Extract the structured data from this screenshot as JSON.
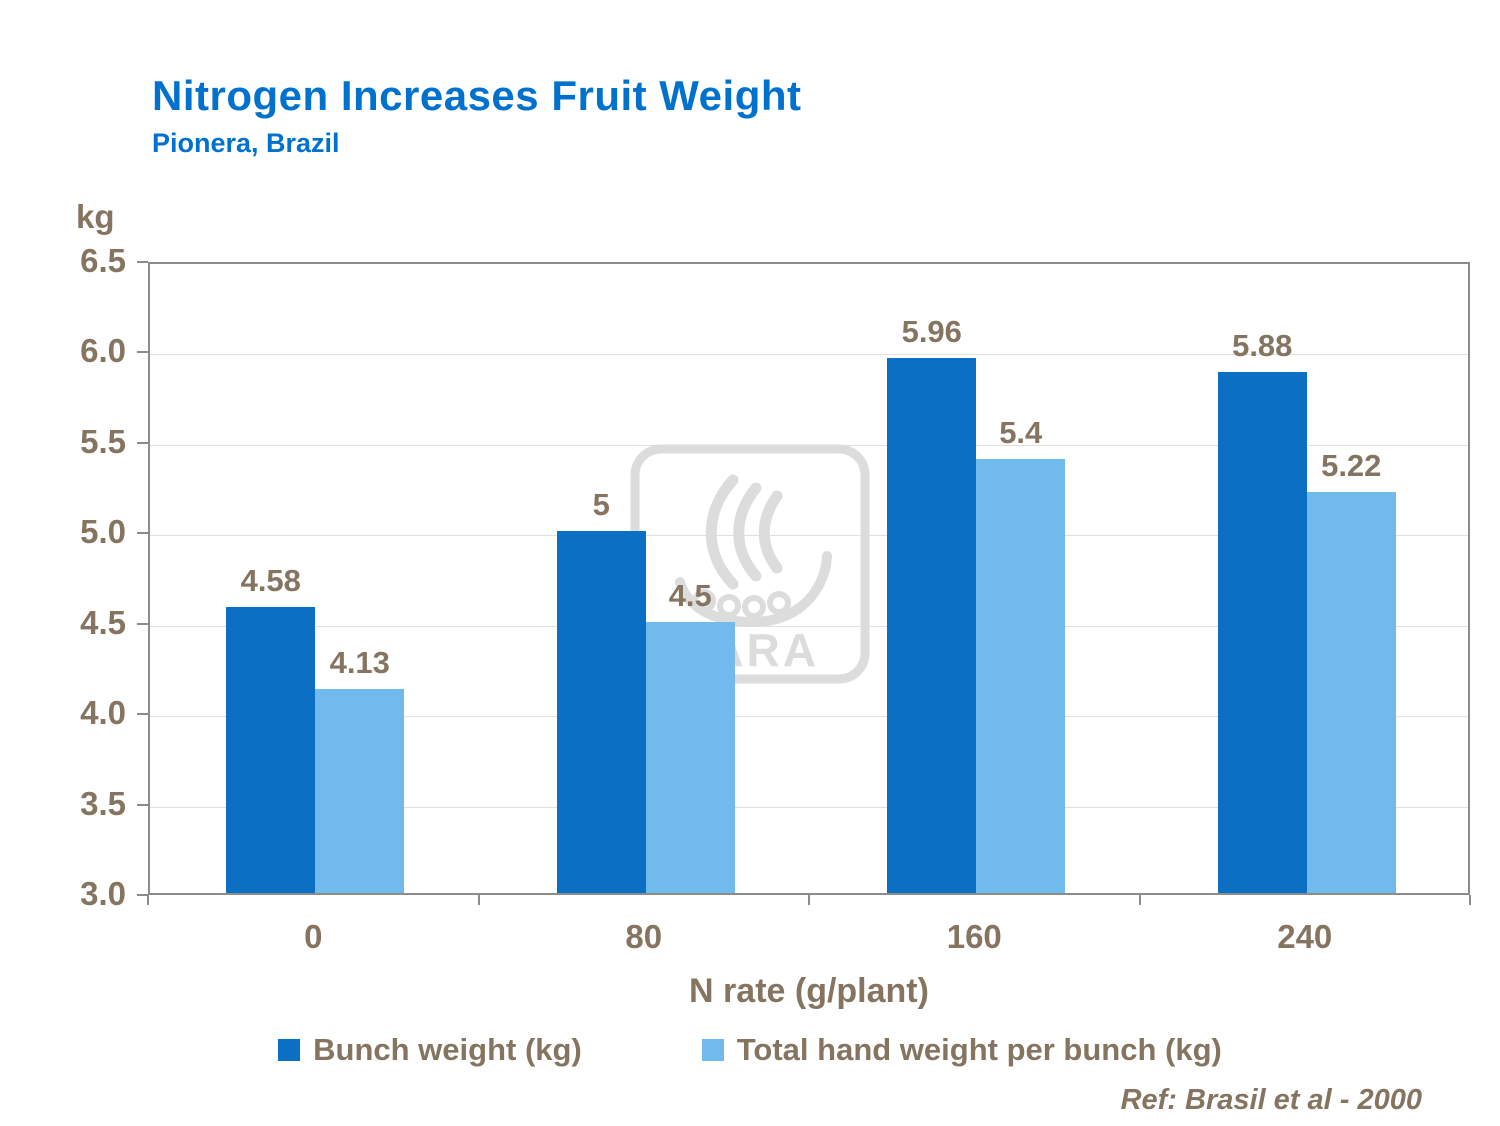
{
  "header": {
    "title": "Nitrogen Increases Fruit Weight",
    "subtitle": "Pionera, Brazil"
  },
  "footer": {
    "ref": "Ref: Brasil et al - 2000"
  },
  "watermark": {
    "text": "YARA"
  },
  "colors": {
    "title_blue": "#0072CE",
    "axis_text_brown": "#857560",
    "grid_gray": "#E0E0E0",
    "watermark_gray": "#DCDCDC",
    "series1_dark_blue": "#0B70C4",
    "series2_light_blue": "#70BBEC"
  },
  "chart_data": {
    "type": "bar",
    "title": "Nitrogen Increases Fruit Weight",
    "subtitle": "Pionera, Brazil",
    "categories": [
      "0",
      "80",
      "160",
      "240"
    ],
    "series": [
      {
        "name": "Bunch weight (kg)",
        "color": "#0B70C4",
        "values": [
          4.58,
          5,
          5.96,
          5.88
        ]
      },
      {
        "name": "Total hand weight per bunch (kg)",
        "color": "#70BBEC",
        "values": [
          4.13,
          4.5,
          5.4,
          5.22
        ]
      }
    ],
    "xlabel": "N rate (g/plant)",
    "ylabel": "kg",
    "ylim": [
      3.0,
      6.5
    ],
    "yticks": [
      "3.0",
      "3.5",
      "4.0",
      "4.5",
      "5.0",
      "5.5",
      "6.0",
      "6.5"
    ],
    "grid": "horizontal-light",
    "legend_position": "bottom",
    "data_labels": true
  }
}
